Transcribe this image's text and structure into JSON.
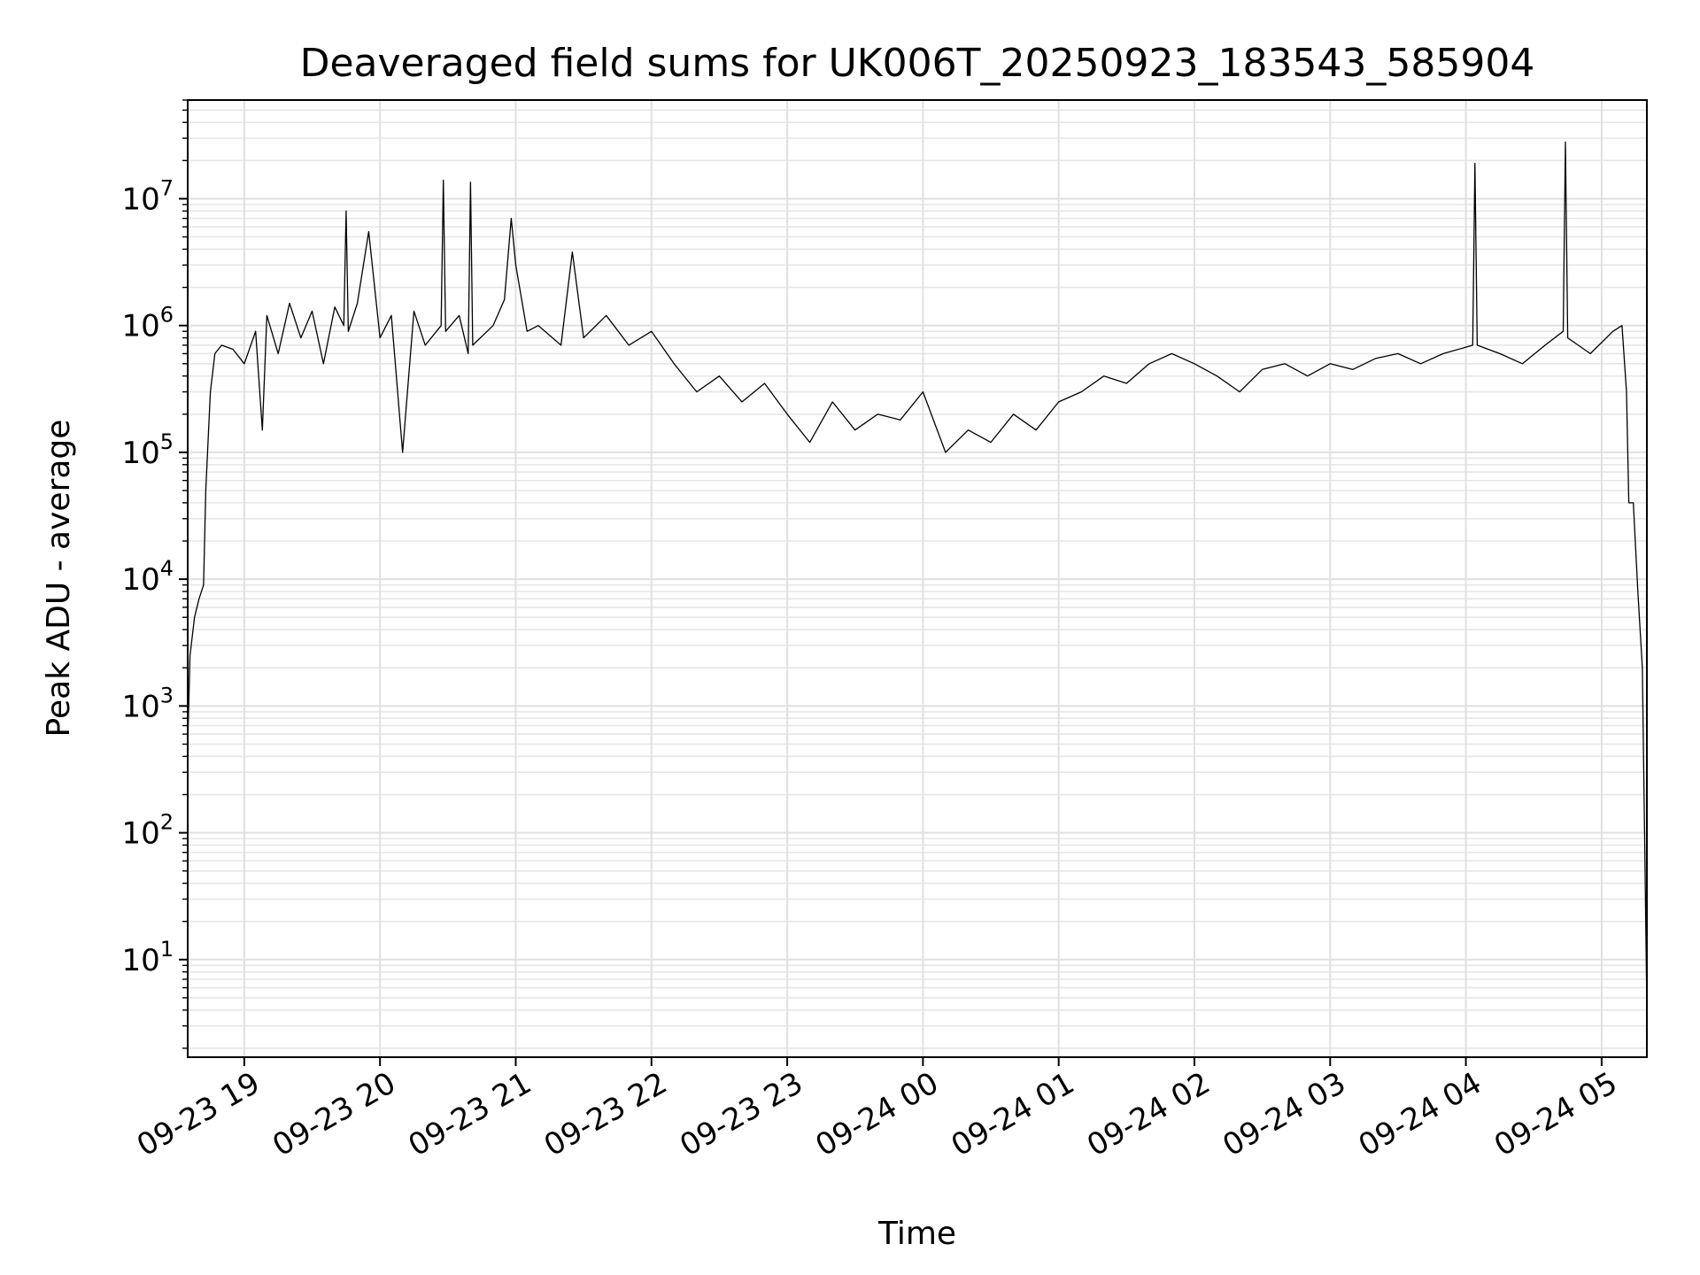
{
  "chart_data": {
    "type": "line",
    "title": "Deaveraged field sums for UK006T_20250923_183543_585904",
    "xlabel": "Time",
    "ylabel": "Peak ADU - average",
    "yscale": "log",
    "ylim": [
      1.7,
      60000000
    ],
    "xlim": [
      "2025-09-23 18:35",
      "2025-09-24 05:20"
    ],
    "grid": true,
    "x_ticks": [
      {
        "value": "2025-09-23 19:00",
        "label": "09-23 19"
      },
      {
        "value": "2025-09-23 20:00",
        "label": "09-23 20"
      },
      {
        "value": "2025-09-23 21:00",
        "label": "09-23 21"
      },
      {
        "value": "2025-09-23 22:00",
        "label": "09-23 22"
      },
      {
        "value": "2025-09-23 23:00",
        "label": "09-23 23"
      },
      {
        "value": "2025-09-24 00:00",
        "label": "09-24 00"
      },
      {
        "value": "2025-09-24 01:00",
        "label": "09-24 01"
      },
      {
        "value": "2025-09-24 02:00",
        "label": "09-24 02"
      },
      {
        "value": "2025-09-24 03:00",
        "label": "09-24 03"
      },
      {
        "value": "2025-09-24 04:00",
        "label": "09-24 04"
      },
      {
        "value": "2025-09-24 05:00",
        "label": "09-24 05"
      }
    ],
    "y_ticks": [
      {
        "value": 10,
        "base": "10",
        "exp": "1"
      },
      {
        "value": 100,
        "base": "10",
        "exp": "2"
      },
      {
        "value": 1000,
        "base": "10",
        "exp": "3"
      },
      {
        "value": 10000,
        "base": "10",
        "exp": "4"
      },
      {
        "value": 100000,
        "base": "10",
        "exp": "5"
      },
      {
        "value": 1000000,
        "base": "10",
        "exp": "6"
      },
      {
        "value": 10000000,
        "base": "10",
        "exp": "7"
      }
    ],
    "series": [
      {
        "color": "#000000",
        "points": [
          [
            "2025-09-23 18:35",
            500
          ],
          [
            "2025-09-23 18:36",
            2500
          ],
          [
            "2025-09-23 18:38",
            5000
          ],
          [
            "2025-09-23 18:40",
            7000
          ],
          [
            "2025-09-23 18:42",
            9000
          ],
          [
            "2025-09-23 18:43",
            50000
          ],
          [
            "2025-09-23 18:45",
            300000
          ],
          [
            "2025-09-23 18:47",
            600000
          ],
          [
            "2025-09-23 18:50",
            700000
          ],
          [
            "2025-09-23 18:55",
            650000
          ],
          [
            "2025-09-23 19:00",
            500000
          ],
          [
            "2025-09-23 19:05",
            900000
          ],
          [
            "2025-09-23 19:08",
            150000
          ],
          [
            "2025-09-23 19:10",
            1200000
          ],
          [
            "2025-09-23 19:15",
            600000
          ],
          [
            "2025-09-23 19:20",
            1500000
          ],
          [
            "2025-09-23 19:25",
            800000
          ],
          [
            "2025-09-23 19:30",
            1300000
          ],
          [
            "2025-09-23 19:35",
            500000
          ],
          [
            "2025-09-23 19:40",
            1400000
          ],
          [
            "2025-09-23 19:44",
            1000000
          ],
          [
            "2025-09-23 19:45",
            8000000
          ],
          [
            "2025-09-23 19:46",
            900000
          ],
          [
            "2025-09-23 19:50",
            1500000
          ],
          [
            "2025-09-23 19:55",
            5500000
          ],
          [
            "2025-09-23 20:00",
            800000
          ],
          [
            "2025-09-23 20:05",
            1200000
          ],
          [
            "2025-09-23 20:10",
            100000
          ],
          [
            "2025-09-23 20:15",
            1300000
          ],
          [
            "2025-09-23 20:20",
            700000
          ],
          [
            "2025-09-23 20:27",
            1000000
          ],
          [
            "2025-09-23 20:28",
            14000000
          ],
          [
            "2025-09-23 20:29",
            900000
          ],
          [
            "2025-09-23 20:35",
            1200000
          ],
          [
            "2025-09-23 20:39",
            600000
          ],
          [
            "2025-09-23 20:40",
            13500000
          ],
          [
            "2025-09-23 20:41",
            700000
          ],
          [
            "2025-09-23 20:50",
            1000000
          ],
          [
            "2025-09-23 20:55",
            1600000
          ],
          [
            "2025-09-23 20:58",
            7000000
          ],
          [
            "2025-09-23 21:00",
            3000000
          ],
          [
            "2025-09-23 21:05",
            900000
          ],
          [
            "2025-09-23 21:10",
            1000000
          ],
          [
            "2025-09-23 21:20",
            700000
          ],
          [
            "2025-09-23 21:25",
            3800000
          ],
          [
            "2025-09-23 21:30",
            800000
          ],
          [
            "2025-09-23 21:40",
            1200000
          ],
          [
            "2025-09-23 21:50",
            700000
          ],
          [
            "2025-09-23 22:00",
            900000
          ],
          [
            "2025-09-23 22:10",
            500000
          ],
          [
            "2025-09-23 22:20",
            300000
          ],
          [
            "2025-09-23 22:30",
            400000
          ],
          [
            "2025-09-23 22:40",
            250000
          ],
          [
            "2025-09-23 22:50",
            350000
          ],
          [
            "2025-09-23 23:00",
            200000
          ],
          [
            "2025-09-23 23:10",
            120000
          ],
          [
            "2025-09-23 23:20",
            250000
          ],
          [
            "2025-09-23 23:30",
            150000
          ],
          [
            "2025-09-23 23:40",
            200000
          ],
          [
            "2025-09-23 23:50",
            180000
          ],
          [
            "2025-09-24 00:00",
            300000
          ],
          [
            "2025-09-24 00:10",
            100000
          ],
          [
            "2025-09-24 00:20",
            150000
          ],
          [
            "2025-09-24 00:30",
            120000
          ],
          [
            "2025-09-24 00:40",
            200000
          ],
          [
            "2025-09-24 00:50",
            150000
          ],
          [
            "2025-09-24 01:00",
            250000
          ],
          [
            "2025-09-24 01:10",
            300000
          ],
          [
            "2025-09-24 01:20",
            400000
          ],
          [
            "2025-09-24 01:30",
            350000
          ],
          [
            "2025-09-24 01:40",
            500000
          ],
          [
            "2025-09-24 01:50",
            600000
          ],
          [
            "2025-09-24 02:00",
            500000
          ],
          [
            "2025-09-24 02:10",
            400000
          ],
          [
            "2025-09-24 02:20",
            300000
          ],
          [
            "2025-09-24 02:30",
            450000
          ],
          [
            "2025-09-24 02:40",
            500000
          ],
          [
            "2025-09-24 02:50",
            400000
          ],
          [
            "2025-09-24 03:00",
            500000
          ],
          [
            "2025-09-24 03:10",
            450000
          ],
          [
            "2025-09-24 03:20",
            550000
          ],
          [
            "2025-09-24 03:30",
            600000
          ],
          [
            "2025-09-24 03:40",
            500000
          ],
          [
            "2025-09-24 03:50",
            600000
          ],
          [
            "2025-09-24 04:03",
            700000
          ],
          [
            "2025-09-24 04:04",
            19000000
          ],
          [
            "2025-09-24 04:05",
            700000
          ],
          [
            "2025-09-24 04:15",
            600000
          ],
          [
            "2025-09-24 04:25",
            500000
          ],
          [
            "2025-09-24 04:35",
            700000
          ],
          [
            "2025-09-24 04:43",
            900000
          ],
          [
            "2025-09-24 04:44",
            28000000
          ],
          [
            "2025-09-24 04:45",
            800000
          ],
          [
            "2025-09-24 04:55",
            600000
          ],
          [
            "2025-09-24 05:05",
            900000
          ],
          [
            "2025-09-24 05:09",
            1000000
          ],
          [
            "2025-09-24 05:11",
            300000
          ],
          [
            "2025-09-24 05:12",
            40000
          ],
          [
            "2025-09-24 05:14",
            40000
          ],
          [
            "2025-09-24 05:16",
            8000
          ],
          [
            "2025-09-24 05:18",
            2000
          ],
          [
            "2025-09-24 05:19",
            100
          ],
          [
            "2025-09-24 05:20",
            4
          ]
        ]
      }
    ]
  }
}
